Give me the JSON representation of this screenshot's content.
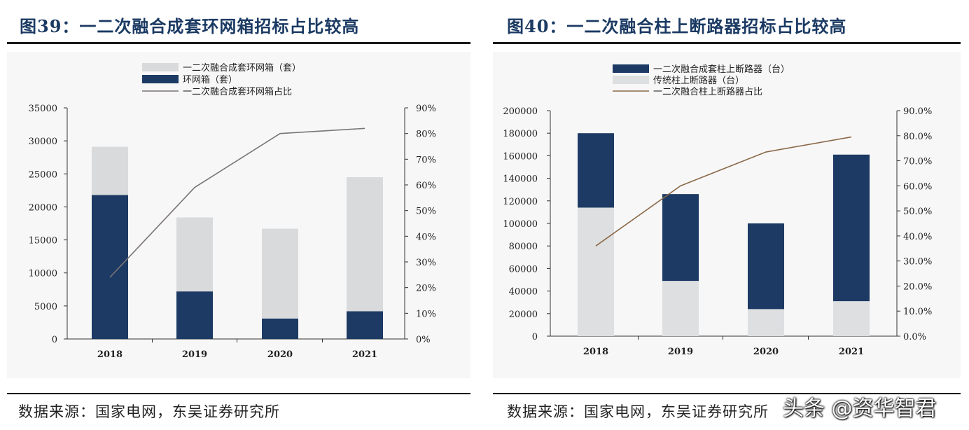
{
  "figures": [
    {
      "title": "图39：一二次融合成套环网箱招标占比较高",
      "source": "数据来源：国家电网，东吴证券研究所",
      "colors": {
        "fusion": "#d9dadc",
        "other": "#1c3a64",
        "line": "#7a7575",
        "axis": "#333333"
      }
    },
    {
      "title": "图40：一二次融合柱上断路器招标占比较高",
      "source": "数据来源：国家电网，东吴证券研究所",
      "colors": {
        "fusion": "#1c3a64",
        "other": "#dedfe1",
        "line": "#8b6a4a",
        "axis": "#333333"
      }
    }
  ],
  "chart_data": [
    {
      "type": "bar",
      "stacked": true,
      "categories": [
        "2018",
        "2019",
        "2020",
        "2021"
      ],
      "series": [
        {
          "name": "环网箱（套）",
          "kind": "bar",
          "values": [
            21800,
            7200,
            3100,
            4200
          ]
        },
        {
          "name": "一二次融合成套环网箱（套）",
          "kind": "bar",
          "values": [
            7300,
            11200,
            13600,
            20300
          ]
        },
        {
          "name": "一二次融合成套环网箱占比",
          "kind": "line",
          "axis": "right",
          "values": [
            0.24,
            0.59,
            0.8,
            0.82
          ]
        }
      ],
      "legend": [
        {
          "name": "一二次融合成套环网箱（套）",
          "kind": "bar",
          "color": "#d9dadc"
        },
        {
          "name": "环网箱（套）",
          "kind": "bar",
          "color": "#1c3a64"
        },
        {
          "name": "一二次融合成套环网箱占比",
          "kind": "line",
          "color": "#7a7575"
        }
      ],
      "legend_position": "top",
      "ylim": [
        0,
        35000
      ],
      "yticks": [
        "0",
        "5000",
        "10000",
        "15000",
        "20000",
        "25000",
        "30000",
        "35000"
      ],
      "y2lim": [
        0,
        0.9
      ],
      "y2ticks": [
        "0%",
        "10%",
        "20%",
        "30%",
        "40%",
        "50%",
        "60%",
        "70%",
        "80%",
        "90%"
      ],
      "grid": false
    },
    {
      "type": "bar",
      "stacked": true,
      "categories": [
        "2018",
        "2019",
        "2020",
        "2021"
      ],
      "series": [
        {
          "name": "传统柱上断路器（台）",
          "kind": "bar",
          "values": [
            114000,
            49000,
            24000,
            31000
          ]
        },
        {
          "name": "一二次融合成套柱上断路器（台）",
          "kind": "bar",
          "values": [
            66000,
            77000,
            76000,
            130000
          ]
        },
        {
          "name": "一二次融合柱上断路器占比",
          "kind": "line",
          "axis": "right",
          "values": [
            0.36,
            0.6,
            0.735,
            0.795
          ]
        }
      ],
      "legend": [
        {
          "name": "一二次融合成套柱上断路器（台）",
          "kind": "bar",
          "color": "#1c3a64"
        },
        {
          "name": "传统柱上断路器（台）",
          "kind": "bar",
          "color": "#dedfe1"
        },
        {
          "name": "一二次融合柱上断路器占比",
          "kind": "line",
          "color": "#8b6a4a"
        }
      ],
      "legend_position": "top",
      "ylim": [
        0,
        200000
      ],
      "yticks": [
        "0",
        "20000",
        "40000",
        "60000",
        "80000",
        "100000",
        "120000",
        "140000",
        "160000",
        "180000",
        "200000"
      ],
      "y2lim": [
        0,
        0.9
      ],
      "y2ticks": [
        "0.0%",
        "10.0%",
        "20.0%",
        "30.0%",
        "40.0%",
        "50.0%",
        "60.0%",
        "70.0%",
        "80.0%",
        "90.0%"
      ],
      "grid": false
    }
  ],
  "watermark": "头条 @资华智君"
}
